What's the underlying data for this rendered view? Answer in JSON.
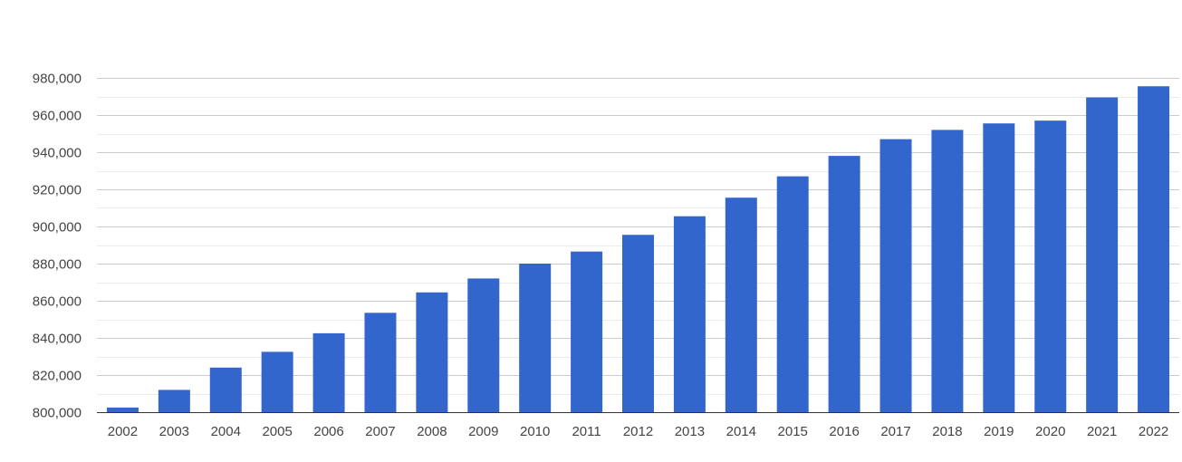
{
  "chart_data": {
    "type": "bar",
    "title": "",
    "xlabel": "",
    "ylabel": "",
    "categories": [
      "2002",
      "2003",
      "2004",
      "2005",
      "2006",
      "2007",
      "2008",
      "2009",
      "2010",
      "2011",
      "2012",
      "2013",
      "2014",
      "2015",
      "2016",
      "2017",
      "2018",
      "2019",
      "2020",
      "2021",
      "2022"
    ],
    "values": [
      802500,
      812000,
      824000,
      832500,
      842500,
      853500,
      864500,
      872000,
      880000,
      886500,
      895500,
      905500,
      915500,
      927000,
      938000,
      947000,
      952000,
      955500,
      957000,
      969500,
      975500
    ],
    "ylim": [
      800000,
      980000
    ],
    "yticks": [
      800000,
      820000,
      840000,
      860000,
      880000,
      900000,
      920000,
      940000,
      960000,
      980000
    ],
    "ytick_labels": [
      "800,000",
      "820,000",
      "840,000",
      "860,000",
      "880,000",
      "900,000",
      "920,000",
      "940,000",
      "960,000",
      "980,000"
    ],
    "grid": true,
    "legend": "none",
    "bar_color": "#3366cc"
  }
}
